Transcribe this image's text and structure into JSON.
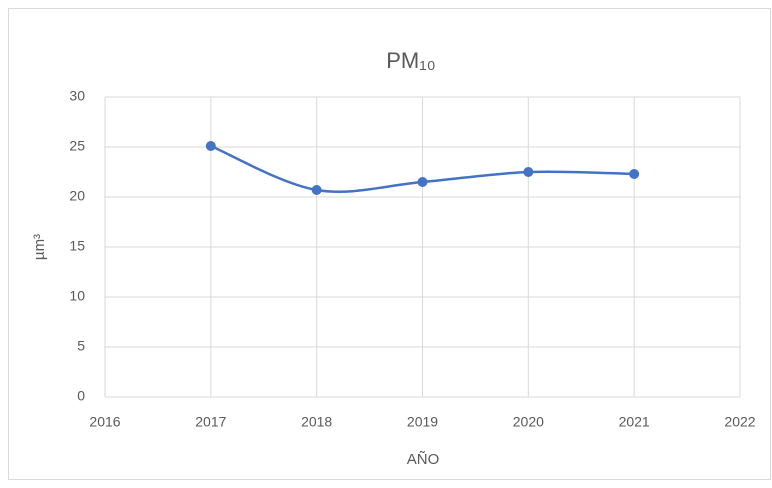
{
  "chart_data": {
    "type": "scatter",
    "title": "PM₁₀",
    "x_label": "AÑO",
    "y_label": "µm³",
    "series": [
      {
        "name": "PM₁₀",
        "color": "#4472c4",
        "x": [
          2017,
          2018,
          2019,
          2020,
          2021
        ],
        "values": [
          25.1,
          20.7,
          21.5,
          22.5,
          22.3
        ]
      }
    ],
    "xlim": [
      2016,
      2022
    ],
    "xticks": [
      2016,
      2017,
      2018,
      2019,
      2020,
      2021,
      2022
    ],
    "ylim": [
      0,
      30
    ],
    "yticks": [
      0,
      5,
      10,
      15,
      20,
      25,
      30
    ],
    "grid": true,
    "smooth": true
  }
}
